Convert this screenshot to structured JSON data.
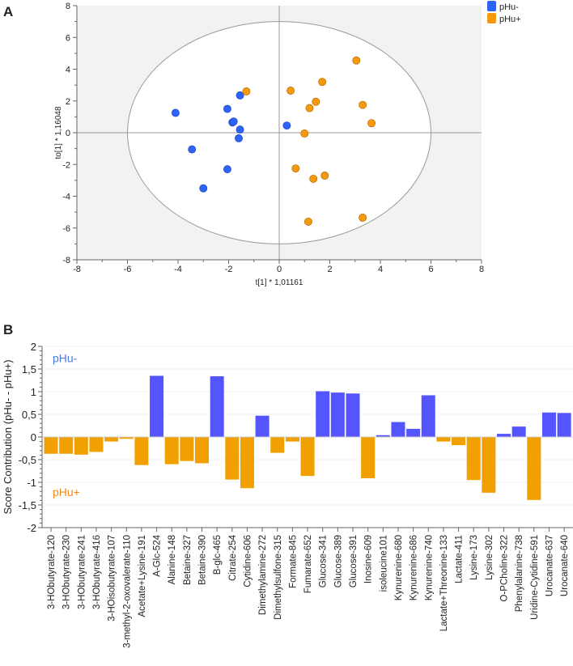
{
  "chart_data": [
    {
      "panel": "A",
      "type": "scatter",
      "xlabel": "t[1] * 1,01161",
      "ylabel": "to[1] * 1,16048",
      "xlim": [
        -8,
        8
      ],
      "ylim": [
        -8,
        8
      ],
      "xticks": [
        "-8",
        "-6",
        "-4",
        "-2",
        "0",
        "2",
        "4",
        "6",
        "8"
      ],
      "yticks": [
        "8",
        "6",
        "4",
        "2",
        "0",
        "-2",
        "-4",
        "-6",
        "-8"
      ],
      "ellipse": {
        "rx": 6,
        "ry": 7
      },
      "legend_position": "top-right",
      "series": [
        {
          "name": "pHu-",
          "color": "#2f63f5",
          "points": [
            [
              -4.1,
              1.25
            ],
            [
              -3.45,
              -1.05
            ],
            [
              -3.0,
              -3.5
            ],
            [
              -2.05,
              1.5
            ],
            [
              -2.05,
              -2.3
            ],
            [
              -1.85,
              0.65
            ],
            [
              -1.8,
              0.7
            ],
            [
              -1.55,
              0.2
            ],
            [
              -1.6,
              -0.35
            ],
            [
              -1.55,
              2.35
            ],
            [
              0.3,
              0.45
            ]
          ]
        },
        {
          "name": "pHu+",
          "color": "#f59a0f",
          "points": [
            [
              -1.3,
              2.6
            ],
            [
              0.45,
              2.65
            ],
            [
              1.7,
              3.2
            ],
            [
              3.05,
              4.55
            ],
            [
              1.45,
              1.95
            ],
            [
              1.2,
              1.55
            ],
            [
              3.3,
              1.75
            ],
            [
              3.65,
              0.6
            ],
            [
              1.0,
              -0.05
            ],
            [
              0.65,
              -2.25
            ],
            [
              1.8,
              -2.7
            ],
            [
              1.35,
              -2.9
            ],
            [
              1.15,
              -5.6
            ],
            [
              3.3,
              -5.35
            ]
          ]
        }
      ]
    },
    {
      "panel": "B",
      "type": "bar",
      "ylabel": "Score Contribution (pHu- - pHu+)",
      "ylim": [
        -2,
        2
      ],
      "yticks": [
        "2",
        "1,5",
        "1",
        "0,5",
        "0",
        "-0,5",
        "-1",
        "-1,5",
        "-2"
      ],
      "annotations": [
        {
          "text": "pHu-",
          "color": "#4a7be0"
        },
        {
          "text": "pHu+",
          "color": "#f08a1c"
        }
      ],
      "positive_color": "#5555ff",
      "negative_color": "#f0a000",
      "categories": [
        "3-HObutyrate-120",
        "3-HObutyrate-230",
        "3-HObutyrate-241",
        "3-HObutyrate-416",
        "3-HOisobutyrate-107",
        "3-methyl-2-oxovalerate-110",
        "Acetate+Lysine-191",
        "A-Glc-524",
        "Alanine-148",
        "Betaine-327",
        "Betaine-390",
        "B-glc-465",
        "Citrate-254",
        "Cytidine-606",
        "Dimethylamine-272",
        "Dimethylsulfone-315",
        "Formate-845",
        "Fumarate-652",
        "Glucose-341",
        "Glucose-389",
        "Glucose-391",
        "Inosine-609",
        "isoleucine101",
        "Kynurenine-680",
        "Kynurenine-686",
        "Kynurenine-740",
        "Lactate+Threonine-133",
        "Lactate-411",
        "Lysine-173",
        "Lysine-302",
        "O-PCholine-322",
        "Phenylalanine-738",
        "Uridine-Cytidine-591",
        "Urocanate-637",
        "Urocanate-640"
      ],
      "values": [
        -0.37,
        -0.37,
        -0.39,
        -0.33,
        -0.1,
        -0.04,
        -0.62,
        1.35,
        -0.6,
        -0.53,
        -0.58,
        1.34,
        -0.94,
        -1.13,
        0.47,
        -0.35,
        -0.1,
        -0.86,
        1.01,
        0.98,
        0.96,
        -0.91,
        0.04,
        0.33,
        0.18,
        0.92,
        -0.1,
        -0.18,
        -0.95,
        -1.23,
        0.07,
        0.23,
        -1.39,
        0.54,
        0.53
      ]
    }
  ],
  "panels": {
    "a": "A",
    "b": "B"
  }
}
